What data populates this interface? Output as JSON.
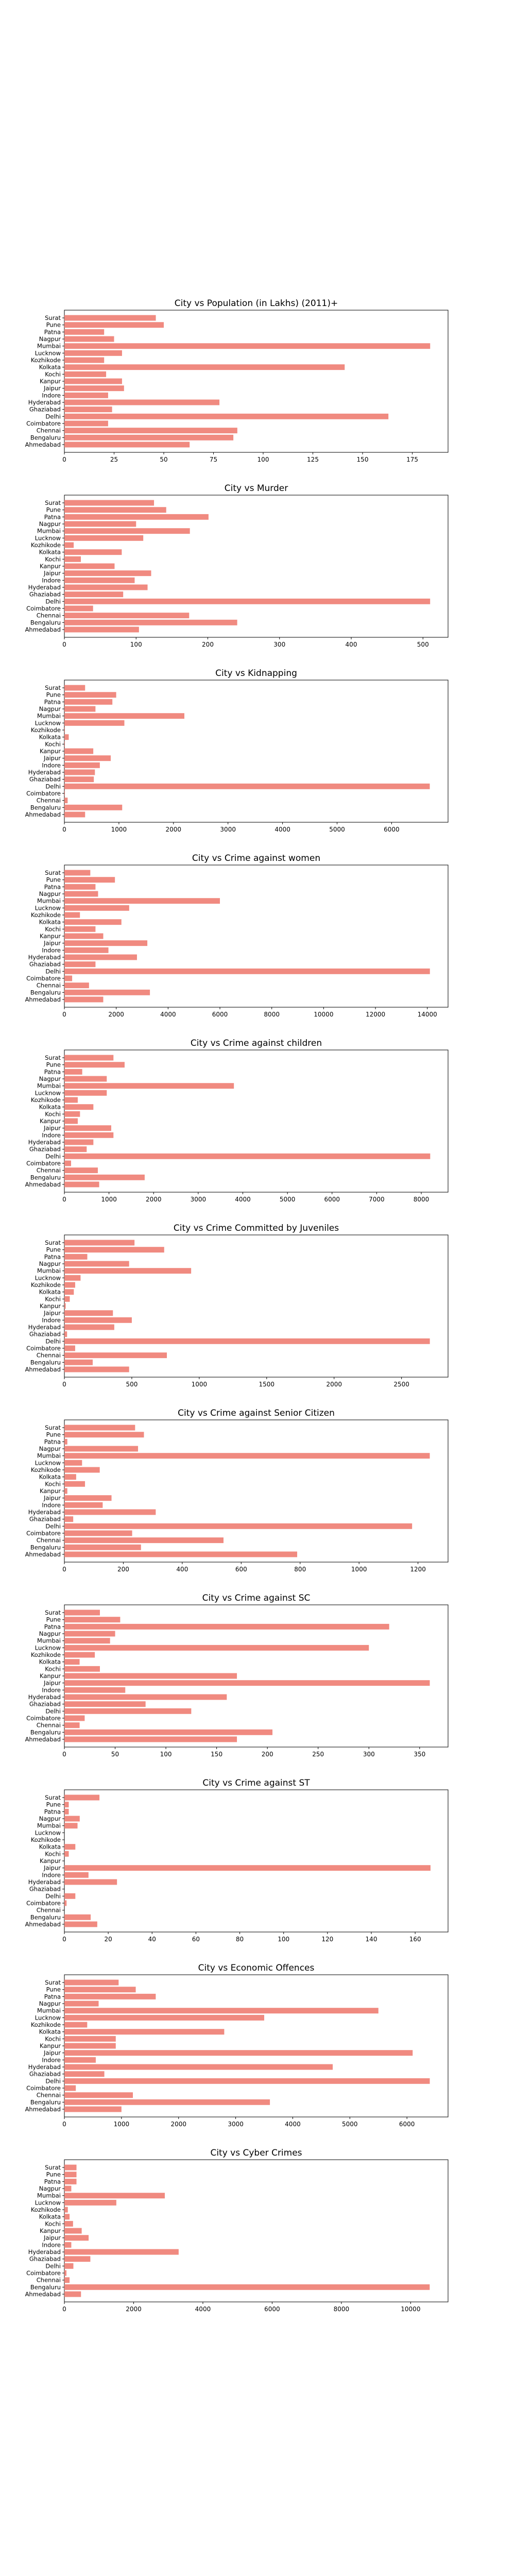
{
  "chart_data": [
    {
      "type": "bar",
      "orientation": "horizontal",
      "title": "City vs Population (in Lakhs) (2011)+",
      "categories": [
        "Ahmedabad",
        "Bengaluru",
        "Chennai",
        "Coimbatore",
        "Delhi",
        "Ghaziabad",
        "Hyderabad",
        "Indore",
        "Jaipur",
        "Kanpur",
        "Kochi",
        "Kolkata",
        "Kozhikode",
        "Lucknow",
        "Mumbai",
        "Nagpur",
        "Patna",
        "Pune",
        "Surat"
      ],
      "values": [
        63,
        85,
        87,
        22,
        163,
        24,
        78,
        22,
        30,
        29,
        21,
        141,
        20,
        29,
        184,
        25,
        20,
        50,
        46
      ],
      "xticks": [
        0,
        25,
        50,
        75,
        100,
        125,
        150,
        175
      ],
      "xlim": [
        0,
        193
      ]
    },
    {
      "type": "bar",
      "orientation": "horizontal",
      "title": "City vs Murder",
      "categories": [
        "Ahmedabad",
        "Bengaluru",
        "Chennai",
        "Coimbatore",
        "Delhi",
        "Ghaziabad",
        "Hyderabad",
        "Indore",
        "Jaipur",
        "Kanpur",
        "Kochi",
        "Kolkata",
        "Kozhikode",
        "Lucknow",
        "Mumbai",
        "Nagpur",
        "Patna",
        "Pune",
        "Surat"
      ],
      "values": [
        104,
        241,
        174,
        40,
        510,
        82,
        116,
        98,
        121,
        70,
        23,
        80,
        13,
        110,
        175,
        100,
        201,
        142,
        125
      ],
      "xticks": [
        0,
        100,
        200,
        300,
        400,
        500
      ],
      "xlim": [
        0,
        535
      ]
    },
    {
      "type": "bar",
      "orientation": "horizontal",
      "title": "City vs Kidnapping",
      "categories": [
        "Ahmedabad",
        "Bengaluru",
        "Chennai",
        "Coimbatore",
        "Delhi",
        "Ghaziabad",
        "Hyderabad",
        "Indore",
        "Jaipur",
        "Kanpur",
        "Kochi",
        "Kolkata",
        "Kozhikode",
        "Lucknow",
        "Mumbai",
        "Nagpur",
        "Patna",
        "Pune",
        "Surat"
      ],
      "values": [
        380,
        1060,
        60,
        10,
        6700,
        540,
        560,
        650,
        850,
        530,
        10,
        80,
        10,
        1100,
        2200,
        570,
        880,
        950,
        380
      ],
      "xticks": [
        0,
        1000,
        2000,
        3000,
        4000,
        5000,
        6000
      ],
      "xlim": [
        0,
        7035
      ]
    },
    {
      "type": "bar",
      "orientation": "horizontal",
      "title": "City vs Crime against women",
      "categories": [
        "Ahmedabad",
        "Bengaluru",
        "Chennai",
        "Coimbatore",
        "Delhi",
        "Ghaziabad",
        "Hyderabad",
        "Indore",
        "Jaipur",
        "Kanpur",
        "Kochi",
        "Kolkata",
        "Kozhikode",
        "Lucknow",
        "Mumbai",
        "Nagpur",
        "Patna",
        "Pune",
        "Surat"
      ],
      "values": [
        1500,
        3300,
        950,
        300,
        14100,
        1200,
        2800,
        1700,
        3200,
        1500,
        1200,
        2200,
        600,
        2500,
        6000,
        1300,
        1200,
        1950,
        1000
      ],
      "xticks": [
        0,
        2000,
        4000,
        6000,
        8000,
        10000,
        12000,
        14000
      ],
      "xlim": [
        0,
        14800
      ]
    },
    {
      "type": "bar",
      "orientation": "horizontal",
      "title": "City vs Crime against children",
      "categories": [
        "Ahmedabad",
        "Bengaluru",
        "Chennai",
        "Coimbatore",
        "Delhi",
        "Ghaziabad",
        "Hyderabad",
        "Indore",
        "Jaipur",
        "Kanpur",
        "Kochi",
        "Kolkata",
        "Kozhikode",
        "Lucknow",
        "Mumbai",
        "Nagpur",
        "Patna",
        "Pune",
        "Surat"
      ],
      "values": [
        780,
        1800,
        750,
        150,
        8200,
        500,
        650,
        1100,
        1050,
        300,
        350,
        650,
        300,
        950,
        3800,
        950,
        400,
        1350,
        1100
      ],
      "xticks": [
        0,
        1000,
        2000,
        3000,
        4000,
        5000,
        6000,
        7000,
        8000
      ],
      "xlim": [
        0,
        8600
      ]
    },
    {
      "type": "bar",
      "orientation": "horizontal",
      "title": "City vs Crime Committed by Juveniles",
      "categories": [
        "Ahmedabad",
        "Bengaluru",
        "Chennai",
        "Coimbatore",
        "Delhi",
        "Ghaziabad",
        "Hyderabad",
        "Indore",
        "Jaipur",
        "Kanpur",
        "Kochi",
        "Kolkata",
        "Kozhikode",
        "Lucknow",
        "Mumbai",
        "Nagpur",
        "Patna",
        "Pune",
        "Surat"
      ],
      "values": [
        480,
        210,
        760,
        80,
        2710,
        20,
        370,
        500,
        360,
        10,
        40,
        70,
        80,
        120,
        940,
        480,
        170,
        740,
        520
      ],
      "xticks": [
        0,
        500,
        1000,
        1500,
        2000,
        2500
      ],
      "xlim": [
        0,
        2845
      ]
    },
    {
      "type": "bar",
      "orientation": "horizontal",
      "title": "City vs Crime against Senior Citizen",
      "categories": [
        "Ahmedabad",
        "Bengaluru",
        "Chennai",
        "Coimbatore",
        "Delhi",
        "Ghaziabad",
        "Hyderabad",
        "Indore",
        "Jaipur",
        "Kanpur",
        "Kochi",
        "Kolkata",
        "Kozhikode",
        "Lucknow",
        "Mumbai",
        "Nagpur",
        "Patna",
        "Pune",
        "Surat"
      ],
      "values": [
        790,
        260,
        540,
        230,
        1180,
        30,
        310,
        130,
        160,
        10,
        70,
        40,
        120,
        60,
        1240,
        250,
        10,
        270,
        240
      ],
      "xticks": [
        0,
        200,
        400,
        600,
        800,
        1000,
        1200
      ],
      "xlim": [
        0,
        1302
      ]
    },
    {
      "type": "bar",
      "orientation": "horizontal",
      "title": "City vs Crime against SC",
      "categories": [
        "Ahmedabad",
        "Bengaluru",
        "Chennai",
        "Coimbatore",
        "Delhi",
        "Ghaziabad",
        "Hyderabad",
        "Indore",
        "Jaipur",
        "Kanpur",
        "Kochi",
        "Kolkata",
        "Kozhikode",
        "Lucknow",
        "Mumbai",
        "Nagpur",
        "Patna",
        "Pune",
        "Surat"
      ],
      "values": [
        170,
        205,
        15,
        20,
        125,
        80,
        160,
        60,
        360,
        170,
        35,
        15,
        30,
        300,
        45,
        50,
        320,
        55,
        35
      ],
      "xticks": [
        0,
        50,
        100,
        150,
        200,
        250,
        300,
        350
      ],
      "xlim": [
        0,
        378
      ]
    },
    {
      "type": "bar",
      "orientation": "horizontal",
      "title": "City vs Crime against ST",
      "categories": [
        "Ahmedabad",
        "Bengaluru",
        "Chennai",
        "Coimbatore",
        "Delhi",
        "Ghaziabad",
        "Hyderabad",
        "Indore",
        "Jaipur",
        "Kanpur",
        "Kochi",
        "Kolkata",
        "Kozhikode",
        "Lucknow",
        "Mumbai",
        "Nagpur",
        "Patna",
        "Pune",
        "Surat"
      ],
      "values": [
        15,
        12,
        0,
        1,
        5,
        0,
        24,
        11,
        167,
        0,
        2,
        5,
        0,
        0,
        6,
        7,
        2,
        2,
        16
      ],
      "xticks": [
        0,
        20,
        40,
        60,
        80,
        100,
        120,
        140,
        160
      ],
      "xlim": [
        0,
        175
      ]
    },
    {
      "type": "bar",
      "orientation": "horizontal",
      "title": "City vs Economic Offences",
      "categories": [
        "Ahmedabad",
        "Bengaluru",
        "Chennai",
        "Coimbatore",
        "Delhi",
        "Ghaziabad",
        "Hyderabad",
        "Indore",
        "Jaipur",
        "Kanpur",
        "Kochi",
        "Kolkata",
        "Kozhikode",
        "Lucknow",
        "Mumbai",
        "Nagpur",
        "Patna",
        "Pune",
        "Surat"
      ],
      "values": [
        1000,
        3600,
        1200,
        200,
        6400,
        700,
        4700,
        550,
        6100,
        900,
        900,
        2800,
        400,
        3500,
        5500,
        600,
        1600,
        1250,
        950
      ],
      "xticks": [
        0,
        1000,
        2000,
        3000,
        4000,
        5000,
        6000
      ],
      "xlim": [
        0,
        6720
      ]
    },
    {
      "type": "bar",
      "orientation": "horizontal",
      "title": "City vs Cyber Crimes",
      "categories": [
        "Ahmedabad",
        "Bengaluru",
        "Chennai",
        "Coimbatore",
        "Delhi",
        "Ghaziabad",
        "Hyderabad",
        "Indore",
        "Jaipur",
        "Kanpur",
        "Kochi",
        "Kolkata",
        "Kozhikode",
        "Lucknow",
        "Mumbai",
        "Nagpur",
        "Patna",
        "Pune",
        "Surat"
      ],
      "values": [
        480,
        10550,
        150,
        60,
        260,
        750,
        3300,
        200,
        700,
        500,
        250,
        150,
        100,
        1500,
        2900,
        200,
        350,
        350,
        350
      ],
      "xticks": [
        0,
        2000,
        4000,
        6000,
        8000,
        10000
      ],
      "xlim": [
        0,
        11080
      ]
    }
  ],
  "colors": {
    "bar": "#f08a80",
    "axis": "#000000",
    "background": "#ffffff"
  }
}
